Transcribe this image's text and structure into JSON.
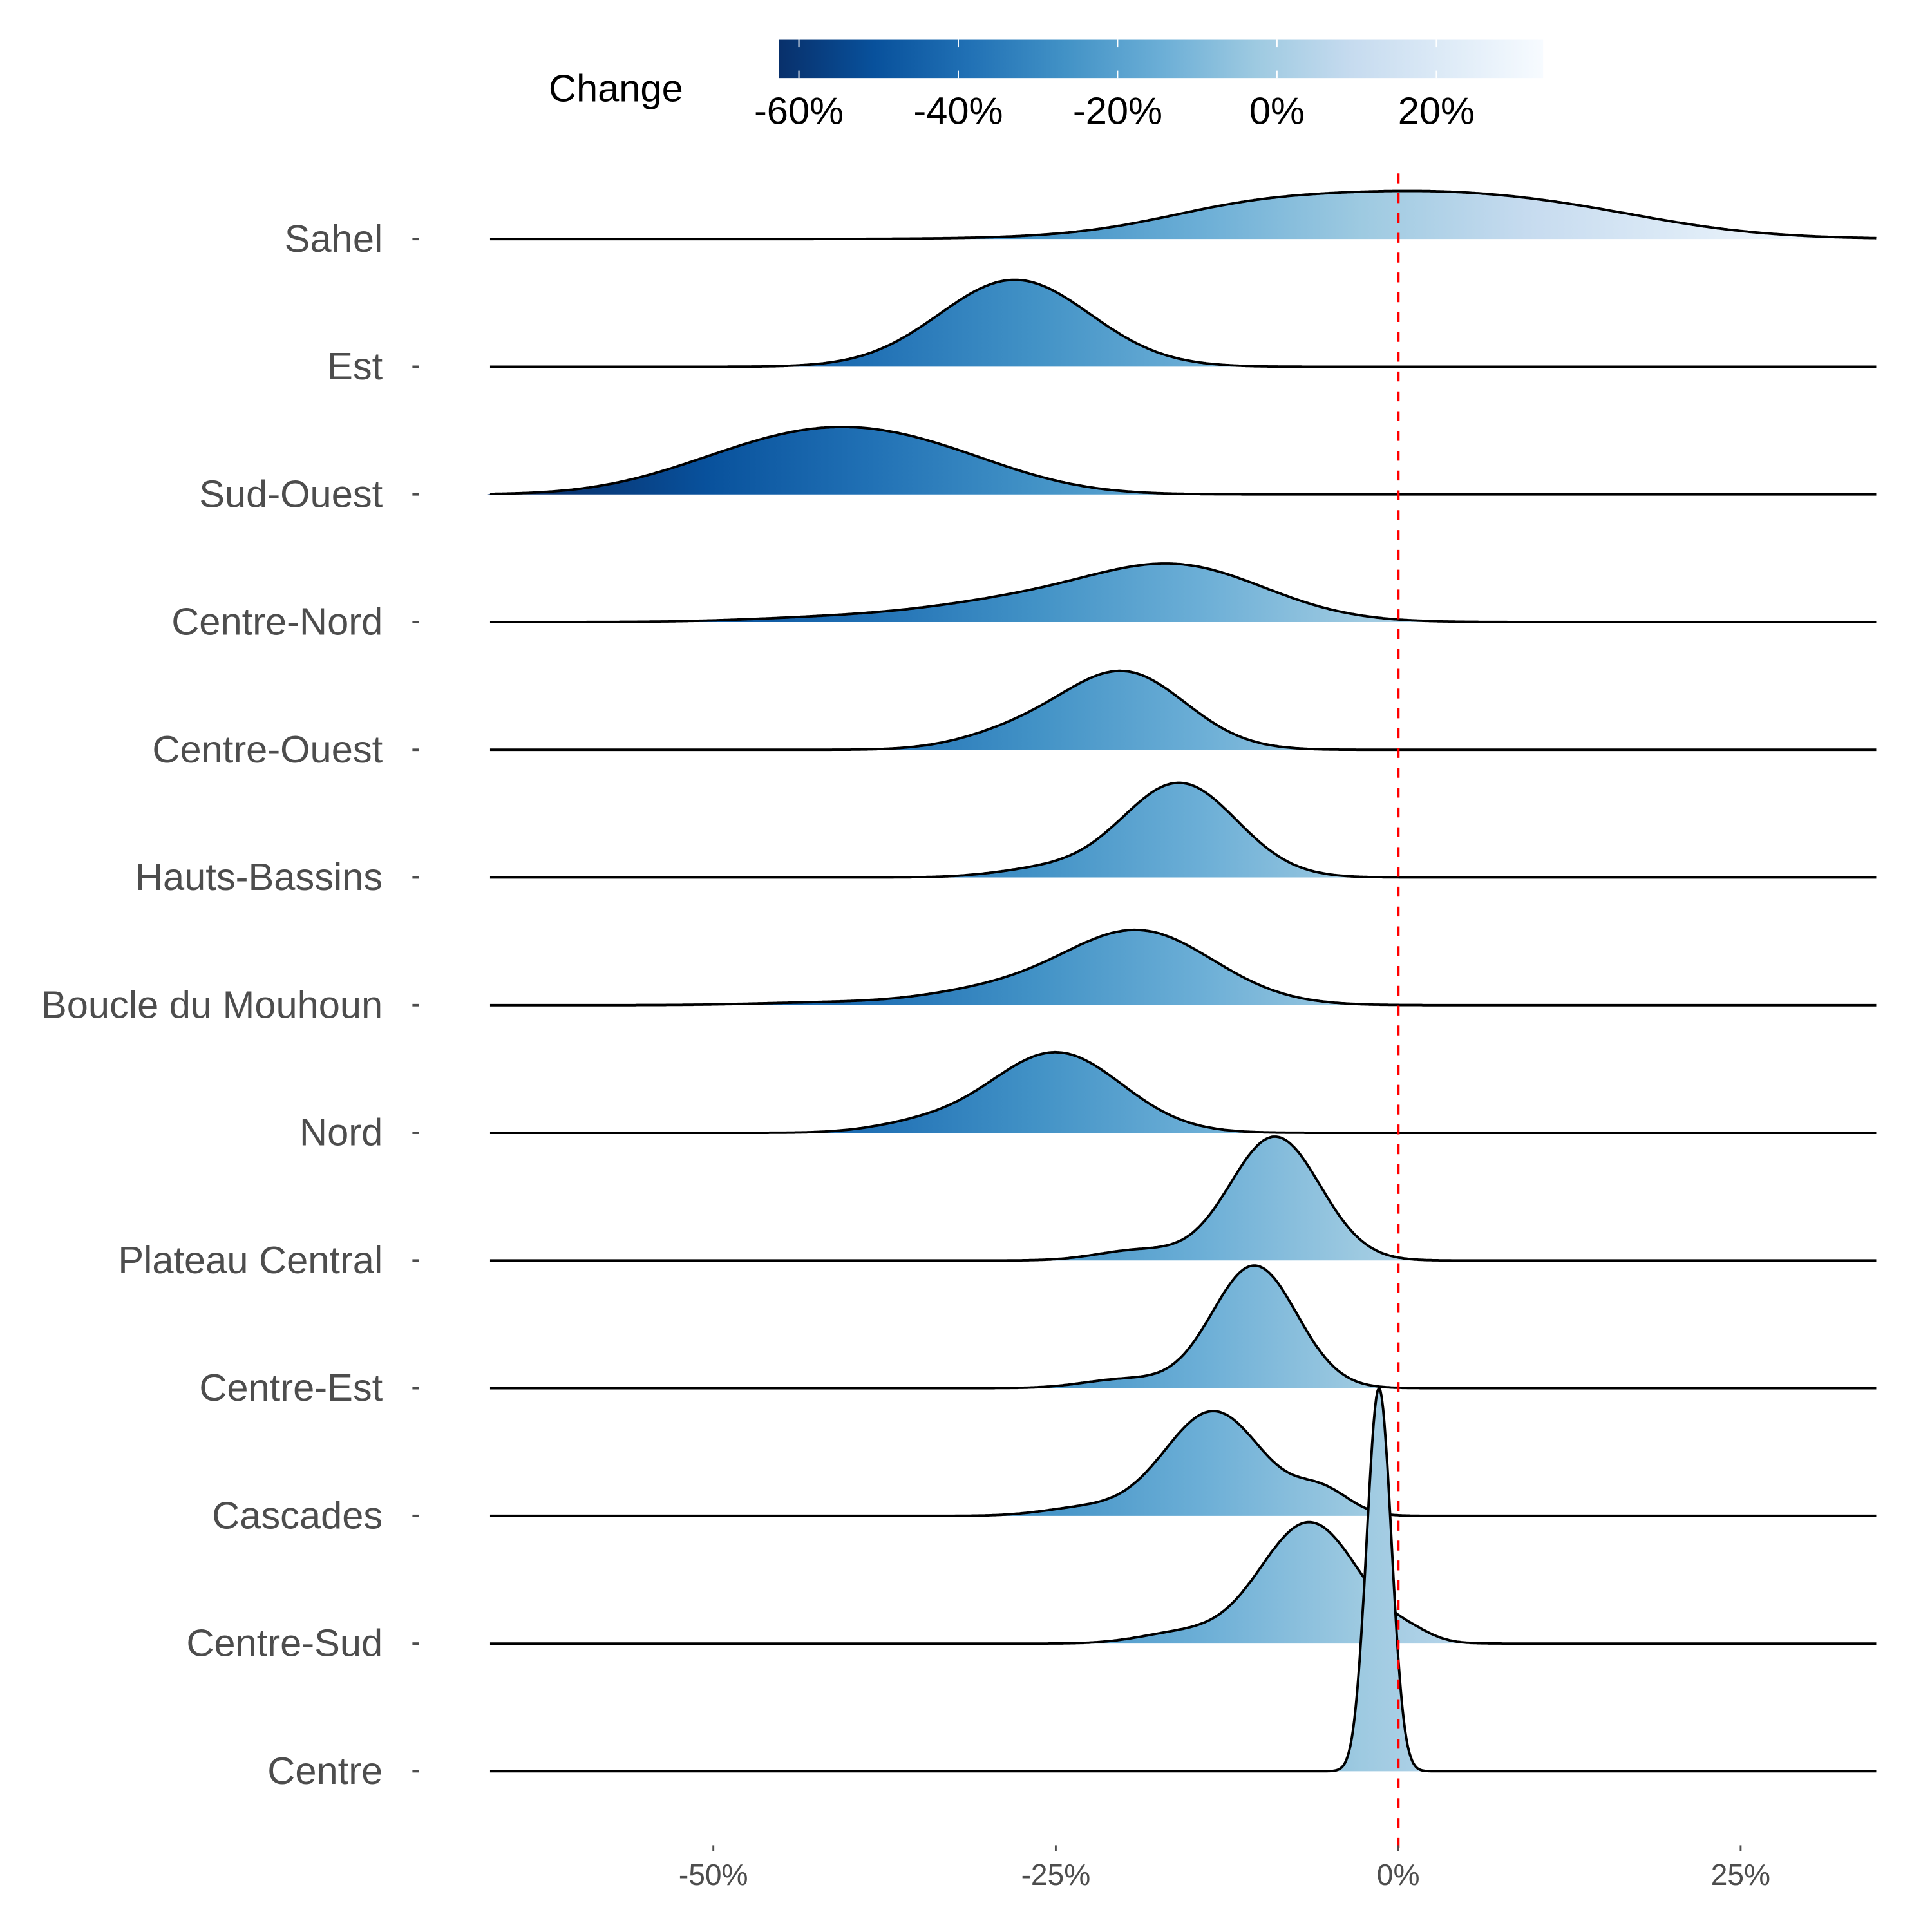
{
  "chart_data": {
    "type": "ridgeline-density",
    "title": "",
    "xlabel": "",
    "ylabel": "",
    "xlim": [
      -66.3,
      34.9
    ],
    "x_ticks": [
      -50,
      -25,
      0,
      25
    ],
    "x_tick_labels": [
      "-50%",
      "-25%",
      "0%",
      "25%"
    ],
    "reference_line": {
      "x": 0,
      "color": "#ff0000",
      "style": "dashed"
    },
    "legend": {
      "title": "Change",
      "position": "top",
      "range": [
        -62.5,
        33.4
      ],
      "ticks": [
        -60,
        -40,
        -20,
        0,
        20
      ],
      "tick_labels": [
        "-60%",
        "-40%",
        "-20%",
        "0%",
        "20%"
      ],
      "colors": [
        "#08306b",
        "#08519c",
        "#2171b5",
        "#4292c6",
        "#6baed6",
        "#9ecae1",
        "#c6dbef",
        "#deebf7",
        "#f7fbff"
      ]
    },
    "series": [
      {
        "name": "Sahel",
        "components": [
          [
            1,
            12,
            0.36
          ],
          [
            -12,
            6,
            0.08
          ],
          [
            14,
            7,
            0.05
          ]
        ]
      },
      {
        "name": "Est",
        "components": [
          [
            -28,
            5.5,
            0.68
          ]
        ]
      },
      {
        "name": "Sud-Ouest",
        "components": [
          [
            -41,
            7,
            0.44
          ],
          [
            -50,
            6,
            0.12
          ],
          [
            -32,
            6,
            0.15
          ]
        ]
      },
      {
        "name": "Centre-Nord",
        "components": [
          [
            -16,
            6.5,
            0.42
          ],
          [
            -28,
            7,
            0.15
          ],
          [
            -42,
            6,
            0.03
          ]
        ]
      },
      {
        "name": "Centre-Ouest",
        "components": [
          [
            -20,
            4.5,
            0.6
          ],
          [
            -28,
            4,
            0.12
          ]
        ]
      },
      {
        "name": "Hauts-Bassins",
        "components": [
          [
            -16,
            4.2,
            0.74
          ],
          [
            -26,
            3.5,
            0.06
          ]
        ]
      },
      {
        "name": "Boucle du Mouhoun",
        "components": [
          [
            -19,
            5.5,
            0.58
          ],
          [
            -30,
            5,
            0.1
          ],
          [
            -42,
            5,
            0.02
          ]
        ]
      },
      {
        "name": "Nord",
        "components": [
          [
            -25,
            4.8,
            0.63
          ],
          [
            -35,
            3.5,
            0.06
          ]
        ]
      },
      {
        "name": "Plateau Central",
        "components": [
          [
            -9,
            3.3,
            0.97
          ],
          [
            -19,
            3,
            0.08
          ]
        ]
      },
      {
        "name": "Centre-Est",
        "components": [
          [
            -10.5,
            3.1,
            0.96
          ],
          [
            -20,
            3,
            0.07
          ]
        ]
      },
      {
        "name": "Cascades",
        "components": [
          [
            -13.5,
            3.6,
            0.82
          ],
          [
            -5.5,
            2,
            0.18
          ],
          [
            -23,
            3,
            0.06
          ]
        ]
      },
      {
        "name": "Centre-Sud",
        "components": [
          [
            -6.5,
            3.6,
            0.95
          ],
          [
            -16,
            3,
            0.08
          ],
          [
            1,
            1.5,
            0.05
          ]
        ]
      },
      {
        "name": "Centre",
        "components": [
          [
            -1.4,
            0.9,
            3.0
          ]
        ]
      }
    ]
  }
}
